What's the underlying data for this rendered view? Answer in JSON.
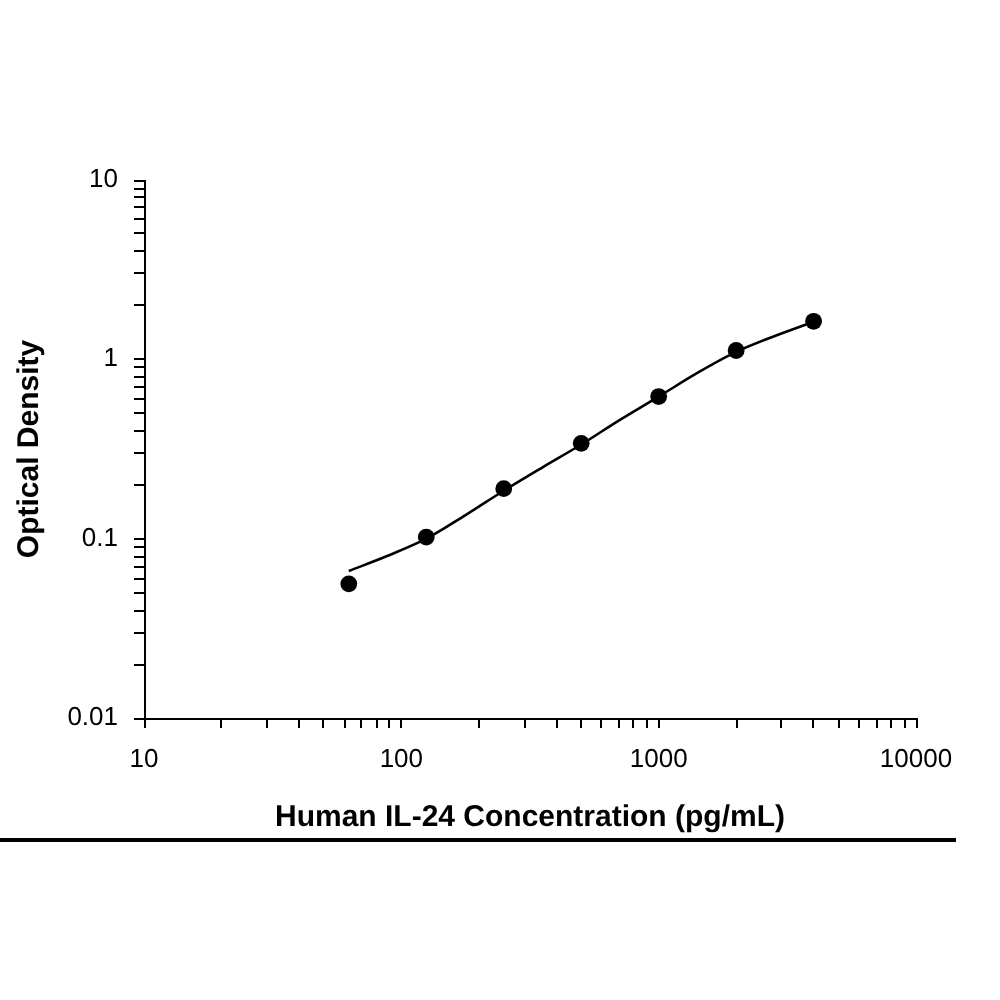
{
  "chart_data": {
    "type": "scatter",
    "xlabel": "Human IL-24 Concentration (pg/mL)",
    "ylabel": "Optical Density",
    "log": "xy",
    "grid": false,
    "legend": false,
    "xlim": [
      10,
      10000
    ],
    "xticks": [
      10,
      {
        "value": 20,
        "label": null
      },
      {
        "value": 30,
        "label": null
      },
      {
        "value": 40,
        "label": null
      },
      {
        "value": 50,
        "label": null
      },
      {
        "value": 60,
        "label": null
      },
      {
        "value": 70,
        "label": null
      },
      {
        "value": 80,
        "label": null
      },
      {
        "value": 90,
        "label": null
      },
      100,
      {
        "value": 200,
        "label": null
      },
      {
        "value": 300,
        "label": null
      },
      {
        "value": 400,
        "label": null
      },
      {
        "value": 500,
        "label": null
      },
      {
        "value": 600,
        "label": null
      },
      {
        "value": 700,
        "label": null
      },
      {
        "value": 800,
        "label": null
      },
      {
        "value": 900,
        "label": null
      },
      1000,
      {
        "value": 2000,
        "label": null
      },
      {
        "value": 3000,
        "label": null
      },
      {
        "value": 4000,
        "label": null
      },
      {
        "value": 5000,
        "label": null
      },
      {
        "value": 6000,
        "label": null
      },
      {
        "value": 7000,
        "label": null
      },
      {
        "value": 8000,
        "label": null
      },
      {
        "value": 9000,
        "label": null
      },
      10000
    ],
    "ylim": [
      0.01,
      10
    ],
    "yticks": [
      0.01,
      {
        "value": 0.02,
        "label": null
      },
      {
        "value": 0.03,
        "label": null
      },
      {
        "value": 0.04,
        "label": null
      },
      {
        "value": 0.05,
        "label": null
      },
      {
        "value": 0.06,
        "label": null
      },
      {
        "value": 0.07,
        "label": null
      },
      {
        "value": 0.08,
        "label": null
      },
      {
        "value": 0.09,
        "label": null
      },
      0.1,
      {
        "value": 0.2,
        "label": null
      },
      {
        "value": 0.3,
        "label": null
      },
      {
        "value": 0.4,
        "label": null
      },
      {
        "value": 0.5,
        "label": null
      },
      {
        "value": 0.6,
        "label": null
      },
      {
        "value": 0.7,
        "label": null
      },
      {
        "value": 0.8,
        "label": null
      },
      {
        "value": 0.9,
        "label": null
      },
      1,
      {
        "value": 2,
        "label": null
      },
      {
        "value": 3,
        "label": null
      },
      {
        "value": 4,
        "label": null
      },
      {
        "value": 5,
        "label": null
      },
      {
        "value": 6,
        "label": null
      },
      {
        "value": 7,
        "label": null
      },
      {
        "value": 8,
        "label": null
      },
      {
        "value": 9,
        "label": null
      },
      10
    ],
    "series": [
      {
        "type": "scatter",
        "color": "#000000",
        "marker": "circle",
        "x": [
          62.5,
          125,
          250,
          500,
          1000,
          2000,
          4000
        ],
        "values": [
          0.056,
          0.102,
          0.19,
          0.34,
          0.62,
          1.12,
          1.63
        ]
      },
      {
        "type": "line",
        "color": "#000000",
        "marker": "none",
        "line_style": "solid",
        "x": [
          62.5,
          88,
          125,
          177,
          250,
          354,
          500,
          707,
          1000,
          1414,
          2000,
          2828,
          4000
        ],
        "values": [
          0.066,
          0.08,
          0.1,
          0.135,
          0.185,
          0.25,
          0.335,
          0.46,
          0.62,
          0.84,
          1.1,
          1.35,
          1.62
        ]
      }
    ]
  }
}
